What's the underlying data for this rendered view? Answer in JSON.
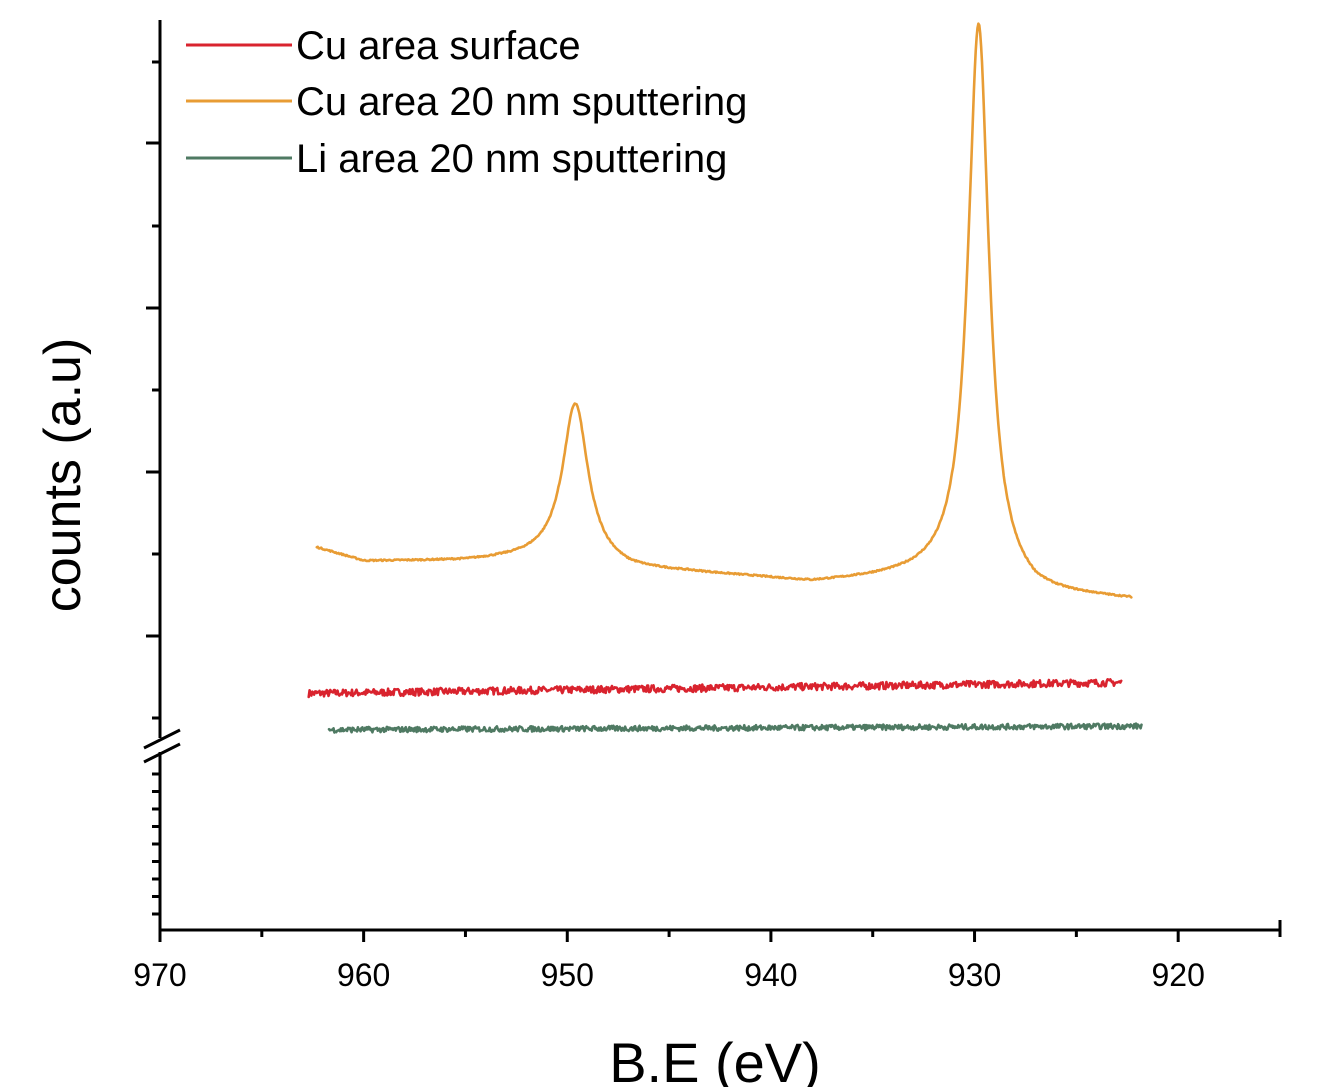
{
  "chart_data": {
    "type": "line",
    "title": "",
    "xlabel": "B.E (eV)",
    "ylabel": "counts (a.u)",
    "xlim": [
      970,
      915
    ],
    "x_reversed": true,
    "x_ticks": [
      970,
      960,
      950,
      940,
      930,
      920
    ],
    "y_axis_break": true,
    "y_tick_labels_shown": false,
    "grid": false,
    "legend_position": "top-left",
    "series": [
      {
        "name": "Cu area surface",
        "color": "#d9232e",
        "x_range": [
          962.7,
          922.8
        ],
        "level": 0.26,
        "trend": 0.012,
        "noise": 0.004,
        "peaks": []
      },
      {
        "name": "Cu area 20 nm sputtering",
        "color": "#e89c34",
        "x_range": [
          962.3,
          922.3
        ],
        "baseline": [
          [
            962.3,
            0.42
          ],
          [
            960,
            0.405
          ],
          [
            955,
            0.405
          ],
          [
            950,
            0.41
          ],
          [
            947,
            0.395
          ],
          [
            944,
            0.392
          ],
          [
            941,
            0.387
          ],
          [
            938,
            0.381
          ],
          [
            934,
            0.386
          ],
          [
            930.5,
            0.39
          ],
          [
            927,
            0.366
          ],
          [
            924,
            0.364
          ],
          [
            922.3,
            0.362
          ]
        ],
        "peaks": [
          {
            "center": 949.6,
            "height": 0.17,
            "width": 0.75
          },
          {
            "center": 929.8,
            "height": 0.61,
            "width": 0.62
          }
        ]
      },
      {
        "name": "Li area 20 nm sputtering",
        "color": "#4f7a63",
        "x_range": [
          961.7,
          921.8
        ],
        "level": 0.22,
        "trend": 0.004,
        "noise": 0.003,
        "peaks": []
      }
    ]
  }
}
